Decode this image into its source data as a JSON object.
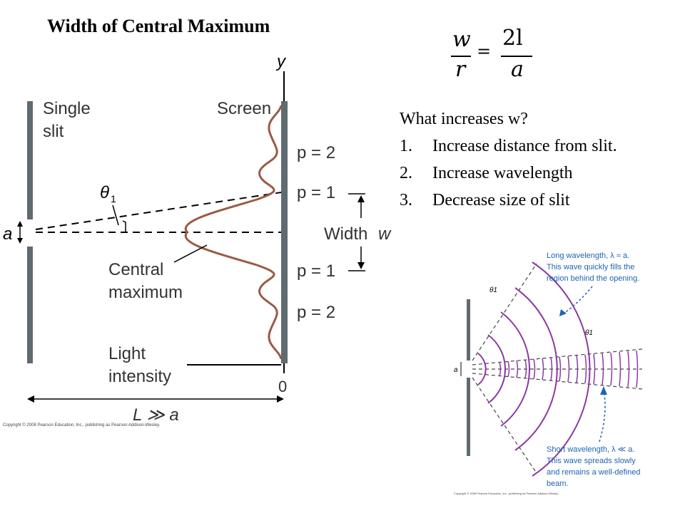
{
  "title": "Width of Central Maximum",
  "formula": {
    "lhs_num": "w",
    "lhs_den": "r",
    "eq": "=",
    "rhs_num": "2l",
    "rhs_den": "a"
  },
  "question": "What increases w?",
  "answers": [
    {
      "num": "1.",
      "text": "Increase distance from slit."
    },
    {
      "num": "2.",
      "text": "Increase wavelength"
    },
    {
      "num": "3.",
      "text": "Decrease size of slit"
    }
  ],
  "left_figure": {
    "y_axis": "y",
    "screen": "Screen",
    "single_slit": [
      "Single",
      "slit"
    ],
    "theta": "θ",
    "theta_sub": "1",
    "a": "a",
    "p2_top": "p = 2",
    "p1_top": "p = 1",
    "width": "Width",
    "width_w": "w",
    "p1_bottom": "p = 1",
    "p2_bottom": "p = 2",
    "central_max": [
      "Central",
      "maximum"
    ],
    "light_intensity": [
      "Light",
      "intensity"
    ],
    "zero": "0",
    "L": "L ≫ a",
    "copyright": "Copyright © 2008 Pearson Education, Inc., publishing as Pearson Addison-Wesley."
  },
  "right_figure": {
    "long_wave": [
      "Long wavelength, λ ≈ a.",
      "This wave quickly fills the",
      "region behind the opening."
    ],
    "short_wave": [
      "Short wavelength, λ ≪ a.",
      "This wave spreads slowly",
      "and remains a well-defined",
      "beam."
    ],
    "theta1": "θ1",
    "a": "a",
    "copyright": "Copyright © 2008 Pearson Education, Inc., publishing as Pearson Addison-Wesley."
  },
  "colors": {
    "curve": "#9a5a46",
    "slit": "#5f6b70",
    "wave": "#8a3aa0",
    "label_blue": "#1f63b0"
  }
}
